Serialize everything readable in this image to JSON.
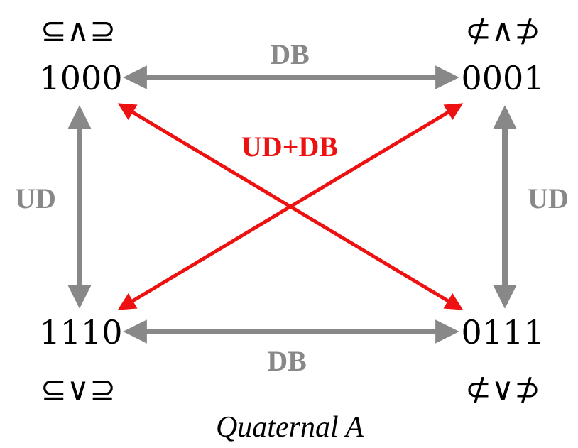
{
  "nodes": {
    "top_left": {
      "code": "1000",
      "symbol": "⊆∧⊇"
    },
    "top_right": {
      "code": "0001",
      "symbol": "⊄∧⊅"
    },
    "bottom_left": {
      "code": "1110",
      "symbol": "⊆∨⊇"
    },
    "bottom_right": {
      "code": "0111",
      "symbol": "⊄∨⊅"
    }
  },
  "edges": {
    "top": {
      "label": "DB",
      "color": "#888888"
    },
    "bottom": {
      "label": "DB",
      "color": "#888888"
    },
    "left": {
      "label": "UD",
      "color": "#888888"
    },
    "right": {
      "label": "UD",
      "color": "#888888"
    },
    "diagonal": {
      "label": "UD+DB",
      "color": "#ee1111"
    }
  },
  "caption": "Quaternal A"
}
